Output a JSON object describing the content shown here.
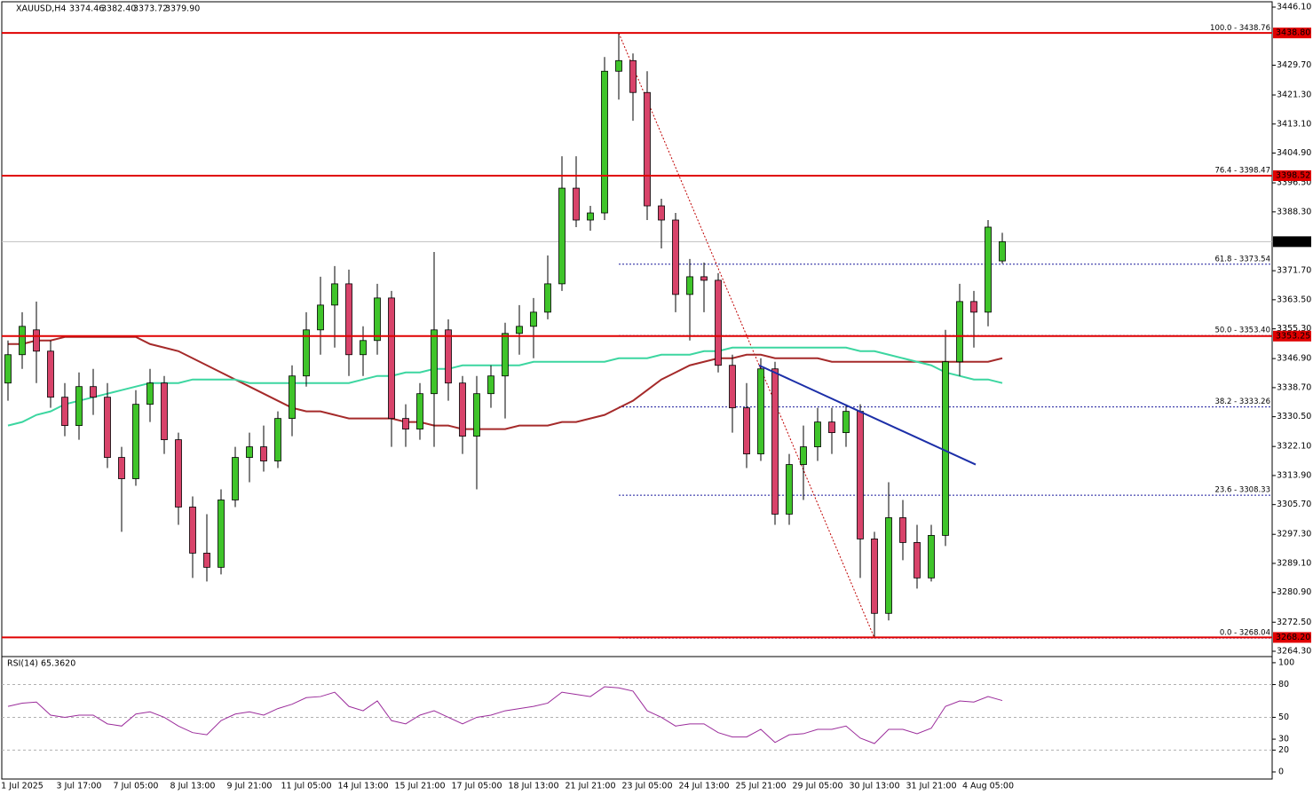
{
  "chart_data": {
    "type": "candlestick",
    "symbol": "XAUUSD,H4",
    "last_bar_labels": [
      "3374.46",
      "3382.40",
      "3373.72",
      "3379.90"
    ],
    "categories": [
      null,
      "1 Jul 2025",
      null,
      null,
      null,
      "3 Jul 17:00",
      null,
      null,
      null,
      "7 Jul 05:00",
      null,
      null,
      null,
      "8 Jul 13:00",
      null,
      null,
      null,
      "9 Jul 21:00",
      null,
      null,
      null,
      "11 Jul 05:00",
      null,
      null,
      null,
      "14 Jul 13:00",
      null,
      null,
      null,
      "15 Jul 21:00",
      null,
      null,
      null,
      "17 Jul 05:00",
      null,
      null,
      null,
      "18 Jul 13:00",
      null,
      null,
      null,
      "21 Jul 21:00",
      null,
      null,
      null,
      "23 Jul 05:00",
      null,
      null,
      null,
      "24 Jul 13:00",
      null,
      null,
      null,
      "25 Jul 21:00",
      null,
      null,
      null,
      "29 Jul 05:00",
      null,
      null,
      null,
      "30 Jul 13:00",
      null,
      null,
      null,
      "31 Jul 21:00",
      null,
      null,
      null,
      "4 Aug 05:00",
      null
    ],
    "ohlc": [
      [
        3340,
        3352,
        3335,
        3348
      ],
      [
        3348,
        3360,
        3344,
        3356
      ],
      [
        3355,
        3363,
        3340,
        3349
      ],
      [
        3349,
        3352,
        3333,
        3336
      ],
      [
        3336,
        3340,
        3325,
        3328
      ],
      [
        3328,
        3343,
        3324,
        3339
      ],
      [
        3339,
        3344,
        3331,
        3336
      ],
      [
        3336,
        3340,
        3316,
        3319
      ],
      [
        3319,
        3322,
        3298,
        3313
      ],
      [
        3313,
        3338,
        3311,
        3334
      ],
      [
        3334,
        3344,
        3329,
        3340
      ],
      [
        3340,
        3342,
        3320,
        3324
      ],
      [
        3324,
        3326,
        3300,
        3305
      ],
      [
        3305,
        3308,
        3285,
        3292
      ],
      [
        3292,
        3303,
        3284,
        3288
      ],
      [
        3288,
        3310,
        3286,
        3307
      ],
      [
        3307,
        3322,
        3305,
        3319
      ],
      [
        3319,
        3326,
        3312,
        3322
      ],
      [
        3322,
        3328,
        3315,
        3318
      ],
      [
        3318,
        3332,
        3316,
        3330
      ],
      [
        3330,
        3345,
        3325,
        3342
      ],
      [
        3342,
        3360,
        3339,
        3355
      ],
      [
        3355,
        3370,
        3348,
        3362
      ],
      [
        3362,
        3373,
        3350,
        3368
      ],
      [
        3368,
        3372,
        3342,
        3348
      ],
      [
        3348,
        3356,
        3342,
        3352
      ],
      [
        3352,
        3368,
        3348,
        3364
      ],
      [
        3364,
        3366,
        3322,
        3330
      ],
      [
        3330,
        3334,
        3322,
        3327
      ],
      [
        3327,
        3340,
        3324,
        3337
      ],
      [
        3337,
        3377,
        3322,
        3355
      ],
      [
        3355,
        3358,
        3335,
        3340
      ],
      [
        3340,
        3342,
        3320,
        3325
      ],
      [
        3325,
        3342,
        3310,
        3337
      ],
      [
        3337,
        3345,
        3333,
        3342
      ],
      [
        3342,
        3357,
        3330,
        3354
      ],
      [
        3354,
        3362,
        3348,
        3356
      ],
      [
        3356,
        3364,
        3347,
        3360
      ],
      [
        3360,
        3376,
        3358,
        3368
      ],
      [
        3368,
        3404,
        3366,
        3395
      ],
      [
        3395,
        3404,
        3384,
        3386
      ],
      [
        3386,
        3390,
        3383,
        3388
      ],
      [
        3388,
        3432,
        3386,
        3428
      ],
      [
        3428,
        3438.8,
        3420,
        3431
      ],
      [
        3431,
        3433,
        3414,
        3422
      ],
      [
        3422,
        3428,
        3386,
        3390
      ],
      [
        3390,
        3392,
        3378,
        3386
      ],
      [
        3386,
        3388,
        3360,
        3365
      ],
      [
        3365,
        3375,
        3352,
        3370
      ],
      [
        3370,
        3374,
        3360,
        3369
      ],
      [
        3369,
        3371,
        3343,
        3345
      ],
      [
        3345,
        3348,
        3326,
        3333
      ],
      [
        3333,
        3340,
        3316,
        3320
      ],
      [
        3320,
        3347,
        3318,
        3344
      ],
      [
        3344,
        3346,
        3300,
        3303
      ],
      [
        3303,
        3320,
        3300,
        3317
      ],
      [
        3317,
        3328,
        3307,
        3322
      ],
      [
        3322,
        3333,
        3318,
        3329
      ],
      [
        3329,
        3333,
        3320,
        3326
      ],
      [
        3326,
        3334,
        3322,
        3332
      ],
      [
        3332,
        3334,
        3285,
        3296
      ],
      [
        3296,
        3298,
        3268.04,
        3275
      ],
      [
        3275,
        3312,
        3273,
        3302
      ],
      [
        3302,
        3307,
        3290,
        3295
      ],
      [
        3295,
        3300,
        3282,
        3285
      ],
      [
        3285,
        3300,
        3284,
        3297
      ],
      [
        3297,
        3355,
        3294,
        3346
      ],
      [
        3346,
        3368,
        3342,
        3363
      ],
      [
        3363,
        3366,
        3350,
        3360
      ],
      [
        3360,
        3386,
        3356,
        3384
      ],
      [
        3374.46,
        3382.4,
        3373.72,
        3379.9
      ]
    ],
    "up_color": "#3fc42a",
    "down_color": "#d8436a",
    "ylim": [
      3262.8,
      3447.6
    ],
    "yticks": [
      {
        "value": 3446.1,
        "label": "3446.10"
      },
      {
        "value": 3429.7,
        "label": "3429.70"
      },
      {
        "value": 3421.3,
        "label": "3421.30"
      },
      {
        "value": 3413.1,
        "label": "3413.10"
      },
      {
        "value": 3404.9,
        "label": "3404.90"
      },
      {
        "value": 3396.5,
        "label": "3396.50"
      },
      {
        "value": 3388.3,
        "label": "3388.30"
      },
      {
        "value": 3371.7,
        "label": "3371.70"
      },
      {
        "value": 3363.5,
        "label": "3363.50"
      },
      {
        "value": 3355.3,
        "label": "3355.30"
      },
      {
        "value": 3346.9,
        "label": "3346.90"
      },
      {
        "value": 3338.7,
        "label": "3338.70"
      },
      {
        "value": 3330.5,
        "label": "3330.50"
      },
      {
        "value": 3322.1,
        "label": "3322.10"
      },
      {
        "value": 3313.9,
        "label": "3313.90"
      },
      {
        "value": 3305.7,
        "label": "3305.70"
      },
      {
        "value": 3297.3,
        "label": "3297.30"
      },
      {
        "value": 3289.1,
        "label": "3289.10"
      },
      {
        "value": 3280.9,
        "label": "3280.90"
      },
      {
        "value": 3272.5,
        "label": "3272.50"
      },
      {
        "value": 3264.3,
        "label": "3264.30"
      }
    ],
    "moving_averages": [
      {
        "color": "#a52a2a",
        "values": [
          3351,
          3351,
          3352,
          3352,
          3353,
          3353,
          3353,
          3353,
          3353,
          3353,
          3351,
          3350,
          3349,
          3347,
          3345,
          3343,
          3341,
          3339,
          3337,
          3335,
          3333,
          3332,
          3332,
          3331,
          3330,
          3330,
          3330,
          3330,
          3329,
          3329,
          3328,
          3328,
          3327,
          3327,
          3327,
          3327,
          3328,
          3328,
          3328,
          3329,
          3329,
          3330,
          3331,
          3333,
          3335,
          3338,
          3341,
          3343,
          3345,
          3346,
          3347,
          3347,
          3348,
          3348,
          3347,
          3347,
          3347,
          3347,
          3346,
          3346,
          3346,
          3346,
          3346,
          3346,
          3346,
          3346,
          3346,
          3346,
          3346,
          3346,
          3347
        ]
      },
      {
        "color": "#3cd6a0",
        "values": [
          3328,
          3329,
          3331,
          3332,
          3334,
          3335,
          3336,
          3337,
          3338,
          3339,
          3340,
          3340,
          3340,
          3341,
          3341,
          3341,
          3341,
          3340,
          3340,
          3340,
          3340,
          3340,
          3340,
          3340,
          3340,
          3341,
          3342,
          3342,
          3343,
          3343,
          3344,
          3344,
          3345,
          3345,
          3345,
          3345,
          3345,
          3346,
          3346,
          3346,
          3346,
          3346,
          3346,
          3347,
          3347,
          3347,
          3348,
          3348,
          3348,
          3349,
          3349,
          3350,
          3350,
          3350,
          3350,
          3350,
          3350,
          3350,
          3350,
          3350,
          3349,
          3349,
          3348,
          3347,
          3346,
          3345,
          3343,
          3342,
          3341,
          3341,
          3340
        ]
      }
    ],
    "hlines": [
      {
        "value": 3438.8,
        "label": "3438.80"
      },
      {
        "value": 3398.52,
        "label": "3398.52"
      },
      {
        "value": 3353.25,
        "label": "3353.25"
      },
      {
        "value": 3268.2,
        "label": "3268.20"
      }
    ],
    "hline_color": "#e00000",
    "fibonacci": {
      "color": "#1a1a9c",
      "line_color": "#c00000",
      "levels": [
        {
          "value": 3438.76,
          "label": "100.0 - 3438.76"
        },
        {
          "value": 3398.47,
          "label": "76.4 - 3398.47"
        },
        {
          "value": 3373.54,
          "label": "61.8 - 3373.54"
        },
        {
          "value": 3353.4,
          "label": "50.0 - 3353.40"
        },
        {
          "value": 3333.26,
          "label": "38.2 - 3333.26"
        },
        {
          "value": 3308.33,
          "label": "23.6 - 3308.33"
        },
        {
          "value": 3268.04,
          "label": "0.0 - 3268.04"
        }
      ]
    },
    "trendline": {
      "color": "#1c2fa8",
      "values": [
        3345,
        3317
      ]
    },
    "rsi": {
      "title": "RSI(14) 65.3620",
      "color": "#9b2c9b",
      "ylim": [
        -6.5,
        104.8
      ],
      "yticks": [
        0,
        20,
        30,
        50,
        80,
        100
      ],
      "levels": [
        80,
        50,
        20
      ],
      "values": [
        60,
        63,
        64,
        52,
        50,
        52,
        52,
        44,
        42,
        53,
        55,
        50,
        42,
        36,
        34,
        47,
        53,
        55,
        52,
        58,
        62,
        68,
        69,
        73,
        60,
        56,
        65,
        47,
        44,
        52,
        56,
        50,
        44,
        50,
        52,
        56,
        58,
        60,
        63,
        73,
        71,
        69,
        78,
        77,
        74,
        56,
        50,
        42,
        44,
        44,
        36,
        32,
        32,
        39,
        27,
        34,
        35,
        39,
        39,
        42,
        31,
        26,
        39,
        39,
        35,
        40,
        60,
        65,
        64,
        69,
        65.362
      ]
    }
  }
}
